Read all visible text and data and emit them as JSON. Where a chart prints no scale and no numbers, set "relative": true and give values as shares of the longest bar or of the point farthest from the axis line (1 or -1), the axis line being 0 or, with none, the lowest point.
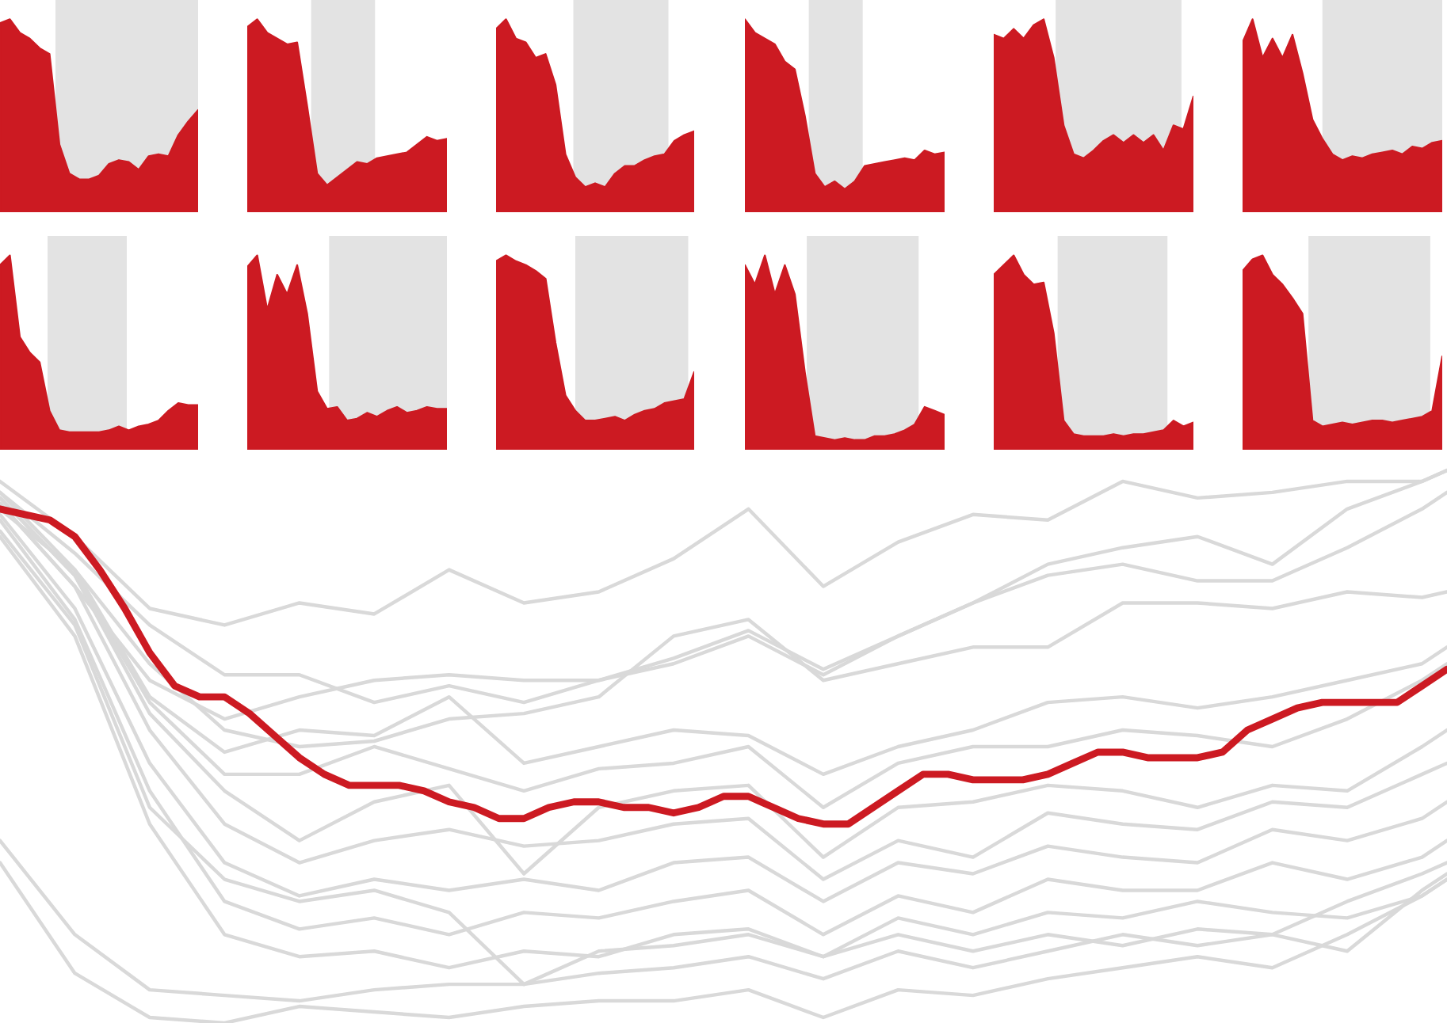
{
  "chart_data": [
    {
      "type": "area",
      "relative": true,
      "categories": [
        null,
        null,
        null,
        null,
        null,
        null,
        null,
        null,
        null,
        null,
        null,
        null,
        null,
        null,
        null,
        null,
        null,
        null,
        null,
        null,
        null
      ],
      "tick_labels": false,
      "series": [
        {
          "color": "#cc1a22",
          "values": [
            0.98,
            1.0,
            0.93,
            0.9,
            0.85,
            0.82,
            0.35,
            0.2,
            0.17,
            0.17,
            0.19,
            0.25,
            0.27,
            0.26,
            0.22,
            0.29,
            0.3,
            0.29,
            0.4,
            0.47,
            0.53
          ]
        }
      ]
    },
    {
      "type": "area",
      "relative": true,
      "categories": [
        null,
        null,
        null,
        null,
        null,
        null,
        null,
        null,
        null,
        null,
        null,
        null,
        null,
        null,
        null,
        null,
        null,
        null,
        null,
        null,
        null
      ],
      "tick_labels": false,
      "series": [
        {
          "color": "#cc1a22",
          "values": [
            0.96,
            1.0,
            0.93,
            0.9,
            0.87,
            0.88,
            0.55,
            0.2,
            0.14,
            0.18,
            0.22,
            0.26,
            0.25,
            0.28,
            0.29,
            0.3,
            0.31,
            0.35,
            0.39,
            0.37,
            0.38
          ]
        }
      ]
    },
    {
      "type": "area",
      "relative": true,
      "categories": [
        null,
        null,
        null,
        null,
        null,
        null,
        null,
        null,
        null,
        null,
        null,
        null,
        null,
        null,
        null,
        null,
        null,
        null,
        null,
        null,
        null
      ],
      "tick_labels": false,
      "series": [
        {
          "color": "#cc1a22",
          "values": [
            0.95,
            1.0,
            0.9,
            0.88,
            0.8,
            0.82,
            0.66,
            0.3,
            0.18,
            0.13,
            0.15,
            0.13,
            0.2,
            0.24,
            0.24,
            0.27,
            0.29,
            0.3,
            0.37,
            0.4,
            0.42
          ]
        }
      ]
    },
    {
      "type": "area",
      "relative": true,
      "categories": [
        null,
        null,
        null,
        null,
        null,
        null,
        null,
        null,
        null,
        null,
        null,
        null,
        null,
        null,
        null,
        null,
        null,
        null,
        null,
        null,
        null
      ],
      "tick_labels": false,
      "series": [
        {
          "color": "#cc1a22",
          "values": [
            1.0,
            0.93,
            0.9,
            0.87,
            0.78,
            0.74,
            0.5,
            0.2,
            0.13,
            0.16,
            0.12,
            0.16,
            0.24,
            0.25,
            0.26,
            0.27,
            0.28,
            0.27,
            0.32,
            0.3,
            0.31
          ]
        }
      ]
    },
    {
      "type": "area",
      "relative": true,
      "categories": [
        null,
        null,
        null,
        null,
        null,
        null,
        null,
        null,
        null,
        null,
        null,
        null,
        null,
        null,
        null,
        null,
        null,
        null,
        null,
        null,
        null
      ],
      "tick_labels": false,
      "series": [
        {
          "color": "#cc1a22",
          "values": [
            0.92,
            0.9,
            0.95,
            0.9,
            0.97,
            1.0,
            0.8,
            0.45,
            0.3,
            0.28,
            0.32,
            0.37,
            0.4,
            0.36,
            0.4,
            0.36,
            0.4,
            0.32,
            0.45,
            0.43,
            0.6
          ]
        }
      ]
    },
    {
      "type": "area",
      "relative": true,
      "categories": [
        null,
        null,
        null,
        null,
        null,
        null,
        null,
        null,
        null,
        null,
        null,
        null,
        null,
        null,
        null,
        null,
        null,
        null,
        null,
        null,
        null
      ],
      "tick_labels": false,
      "series": [
        {
          "color": "#cc1a22",
          "values": [
            0.88,
            1.0,
            0.8,
            0.9,
            0.8,
            0.92,
            0.72,
            0.48,
            0.38,
            0.3,
            0.27,
            0.29,
            0.28,
            0.3,
            0.31,
            0.32,
            0.3,
            0.34,
            0.33,
            0.36,
            0.37
          ]
        }
      ]
    },
    {
      "type": "area",
      "relative": true,
      "categories": [
        null,
        null,
        null,
        null,
        null,
        null,
        null,
        null,
        null,
        null,
        null,
        null,
        null,
        null,
        null,
        null,
        null,
        null,
        null,
        null,
        null
      ],
      "tick_labels": false,
      "series": [
        {
          "color": "#cc1a22",
          "values": [
            0.95,
            1.0,
            0.58,
            0.5,
            0.45,
            0.2,
            0.1,
            0.09,
            0.09,
            0.09,
            0.09,
            0.1,
            0.12,
            0.1,
            0.12,
            0.13,
            0.15,
            0.2,
            0.24,
            0.23,
            0.23
          ]
        }
      ]
    },
    {
      "type": "area",
      "relative": true,
      "categories": [
        null,
        null,
        null,
        null,
        null,
        null,
        null,
        null,
        null,
        null,
        null,
        null,
        null,
        null,
        null,
        null,
        null,
        null,
        null,
        null,
        null
      ],
      "tick_labels": false,
      "series": [
        {
          "color": "#cc1a22",
          "values": [
            0.94,
            1.0,
            0.72,
            0.9,
            0.8,
            0.95,
            0.7,
            0.3,
            0.21,
            0.22,
            0.15,
            0.16,
            0.19,
            0.17,
            0.2,
            0.22,
            0.19,
            0.2,
            0.22,
            0.21,
            0.21
          ]
        }
      ]
    },
    {
      "type": "area",
      "relative": true,
      "categories": [
        null,
        null,
        null,
        null,
        null,
        null,
        null,
        null,
        null,
        null,
        null,
        null,
        null,
        null,
        null,
        null,
        null,
        null,
        null,
        null,
        null
      ],
      "tick_labels": false,
      "series": [
        {
          "color": "#cc1a22",
          "values": [
            0.97,
            1.0,
            0.97,
            0.95,
            0.92,
            0.88,
            0.55,
            0.28,
            0.2,
            0.15,
            0.15,
            0.16,
            0.17,
            0.15,
            0.18,
            0.2,
            0.21,
            0.24,
            0.25,
            0.26,
            0.4
          ]
        }
      ]
    },
    {
      "type": "area",
      "relative": true,
      "categories": [
        null,
        null,
        null,
        null,
        null,
        null,
        null,
        null,
        null,
        null,
        null,
        null,
        null,
        null,
        null,
        null,
        null,
        null,
        null,
        null,
        null
      ],
      "tick_labels": false,
      "series": [
        {
          "color": "#cc1a22",
          "values": [
            0.95,
            0.85,
            1.0,
            0.8,
            0.95,
            0.8,
            0.4,
            0.07,
            0.06,
            0.05,
            0.06,
            0.05,
            0.05,
            0.07,
            0.07,
            0.08,
            0.1,
            0.13,
            0.22,
            0.2,
            0.18
          ]
        }
      ]
    },
    {
      "type": "area",
      "relative": true,
      "categories": [
        null,
        null,
        null,
        null,
        null,
        null,
        null,
        null,
        null,
        null,
        null,
        null,
        null,
        null,
        null,
        null,
        null,
        null,
        null,
        null,
        null
      ],
      "tick_labels": false,
      "series": [
        {
          "color": "#cc1a22",
          "values": [
            0.9,
            0.95,
            1.0,
            0.9,
            0.85,
            0.86,
            0.6,
            0.15,
            0.08,
            0.07,
            0.07,
            0.07,
            0.08,
            0.07,
            0.08,
            0.08,
            0.09,
            0.1,
            0.15,
            0.12,
            0.14
          ]
        }
      ]
    },
    {
      "type": "area",
      "relative": true,
      "categories": [
        null,
        null,
        null,
        null,
        null,
        null,
        null,
        null,
        null,
        null,
        null,
        null,
        null,
        null,
        null,
        null,
        null,
        null,
        null,
        null,
        null
      ],
      "tick_labels": false,
      "series": [
        {
          "color": "#cc1a22",
          "values": [
            0.92,
            0.98,
            1.0,
            0.9,
            0.85,
            0.78,
            0.7,
            0.15,
            0.12,
            0.13,
            0.14,
            0.13,
            0.14,
            0.15,
            0.15,
            0.14,
            0.15,
            0.16,
            0.17,
            0.2,
            0.48
          ]
        }
      ]
    },
    {
      "type": "line",
      "relative": true,
      "categories": [
        null,
        null,
        null,
        null,
        null,
        null,
        null,
        null,
        null,
        null,
        null,
        null,
        null,
        null,
        null,
        null,
        null,
        null,
        null,
        null,
        null,
        null,
        null,
        null,
        null,
        null,
        null,
        null,
        null,
        null,
        null,
        null,
        null,
        null,
        null,
        null,
        null,
        null,
        null,
        null,
        null,
        null,
        null,
        null,
        null,
        null,
        null,
        null,
        null,
        null,
        null,
        null,
        null,
        null,
        null,
        null,
        null,
        null,
        null
      ],
      "tick_labels": false,
      "series": [
        {
          "color": "#d9d9d9",
          "values": [
            0.98,
            null,
            null,
            0.88,
            null,
            null,
            0.75,
            null,
            null,
            0.72,
            null,
            null,
            0.76,
            null,
            null,
            0.74,
            null,
            null,
            0.82,
            null,
            null,
            0.76,
            null,
            null,
            0.78,
            null,
            null,
            0.84,
            null,
            null,
            0.93,
            null,
            null,
            0.79,
            null,
            null,
            0.87,
            null,
            null,
            0.92,
            null,
            null,
            0.91,
            null,
            null,
            0.98,
            null,
            null,
            0.95,
            null,
            null,
            0.96,
            null,
            null,
            0.98,
            null,
            null,
            0.98,
            1.0
          ]
        },
        {
          "color": "#d9d9d9",
          "values": [
            0.96,
            null,
            null,
            0.85,
            null,
            null,
            0.72,
            null,
            null,
            0.63,
            null,
            null,
            0.63,
            null,
            null,
            0.58,
            null,
            null,
            0.61,
            null,
            null,
            0.58,
            null,
            null,
            0.62,
            null,
            null,
            0.65,
            null,
            null,
            0.7,
            null,
            null,
            0.63,
            null,
            null,
            0.7,
            null,
            null,
            0.76,
            null,
            null,
            0.83,
            null,
            null,
            0.86,
            null,
            null,
            0.88,
            null,
            null,
            0.83,
            null,
            null,
            0.93,
            null,
            null,
            0.98,
            1.0
          ]
        },
        {
          "color": "#d9d9d9",
          "values": [
            0.93,
            null,
            null,
            0.82,
            null,
            null,
            0.65,
            null,
            null,
            0.53,
            null,
            null,
            0.5,
            null,
            null,
            0.51,
            null,
            null,
            0.55,
            null,
            null,
            0.56,
            null,
            null,
            0.59,
            null,
            null,
            0.7,
            null,
            null,
            0.73,
            null,
            null,
            0.62,
            null,
            null,
            0.65,
            null,
            null,
            0.68,
            null,
            null,
            0.68,
            null,
            null,
            0.76,
            null,
            null,
            0.76,
            null,
            null,
            0.75,
            null,
            null,
            0.78,
            null,
            null,
            0.77,
            0.78
          ]
        },
        {
          "color": "#d9d9d9",
          "values": [
            0.94,
            null,
            null,
            0.79,
            null,
            null,
            0.62,
            null,
            null,
            0.55,
            null,
            null,
            0.59,
            null,
            null,
            0.62,
            null,
            null,
            0.63,
            null,
            null,
            0.62,
            null,
            null,
            0.62,
            null,
            null,
            0.66,
            null,
            null,
            0.71,
            null,
            null,
            0.64,
            null,
            null,
            0.7,
            null,
            null,
            0.76,
            null,
            null,
            0.81,
            null,
            null,
            0.83,
            null,
            null,
            0.8,
            null,
            null,
            0.8,
            null,
            null,
            0.86,
            null,
            null,
            0.93,
            0.96
          ]
        },
        {
          "color": "#d9d9d9",
          "values": [
            0.29,
            null,
            null,
            0.09,
            null,
            null,
            0.01,
            null,
            null,
            0.0,
            null,
            null,
            0.03,
            null,
            null,
            0.02,
            null,
            null,
            0.01,
            null,
            null,
            0.03,
            null,
            null,
            0.04,
            null,
            null,
            0.04,
            null,
            null,
            0.06,
            null,
            null,
            0.01,
            null,
            null,
            0.06,
            null,
            null,
            0.05,
            null,
            null,
            0.08,
            null,
            null,
            0.1,
            null,
            null,
            0.12,
            null,
            null,
            0.1,
            null,
            null,
            0.16,
            null,
            null,
            0.23,
            0.26
          ]
        },
        {
          "color": "#d9d9d9",
          "values": [
            0.33,
            null,
            null,
            0.16,
            null,
            null,
            0.06,
            null,
            null,
            0.05,
            null,
            null,
            0.04,
            null,
            null,
            0.06,
            null,
            null,
            0.07,
            null,
            null,
            0.07,
            null,
            null,
            0.09,
            null,
            null,
            0.1,
            null,
            null,
            0.12,
            null,
            null,
            0.08,
            null,
            null,
            0.13,
            null,
            null,
            0.1,
            null,
            null,
            0.13,
            null,
            null,
            0.16,
            null,
            null,
            0.14,
            null,
            null,
            0.16,
            null,
            null,
            0.22,
            null,
            null,
            0.27,
            0.29
          ]
        },
        {
          "color": "#d9d9d9",
          "values": [
            0.88,
            null,
            null,
            0.7,
            null,
            null,
            0.36,
            null,
            null,
            0.16,
            null,
            null,
            0.12,
            null,
            null,
            0.13,
            null,
            null,
            0.1,
            null,
            null,
            0.13,
            null,
            null,
            0.12,
            null,
            null,
            0.16,
            null,
            null,
            0.17,
            null,
            null,
            0.12,
            null,
            null,
            0.19,
            null,
            null,
            0.16,
            null,
            null,
            0.2,
            null,
            null,
            0.19,
            null,
            null,
            0.22,
            null,
            null,
            0.2,
            null,
            null,
            0.19,
            null,
            null,
            0.23,
            0.26
          ]
        },
        {
          "color": "#d9d9d9",
          "values": [
            0.91,
            null,
            null,
            0.73,
            null,
            null,
            0.42,
            null,
            null,
            0.22,
            null,
            null,
            0.17,
            null,
            null,
            0.19,
            null,
            null,
            0.16,
            null,
            null,
            0.2,
            null,
            null,
            0.19,
            null,
            null,
            0.22,
            null,
            null,
            0.24,
            null,
            null,
            0.16,
            null,
            null,
            0.23,
            null,
            null,
            0.2,
            null,
            null,
            0.26,
            null,
            null,
            0.24,
            null,
            null,
            0.24,
            null,
            null,
            0.29,
            null,
            null,
            0.26,
            null,
            null,
            0.3,
            0.33
          ]
        },
        {
          "color": "#d9d9d9",
          "values": [
            0.92,
            null,
            null,
            0.75,
            null,
            null,
            0.47,
            null,
            null,
            0.29,
            null,
            null,
            0.23,
            null,
            null,
            0.26,
            null,
            null,
            0.24,
            null,
            null,
            0.26,
            null,
            null,
            0.24,
            null,
            null,
            0.29,
            null,
            null,
            0.3,
            null,
            null,
            0.22,
            null,
            null,
            0.29,
            null,
            null,
            0.27,
            null,
            null,
            0.32,
            null,
            null,
            0.3,
            null,
            null,
            0.29,
            null,
            null,
            0.35,
            null,
            null,
            0.33,
            null,
            null,
            0.37,
            0.4
          ]
        },
        {
          "color": "#d9d9d9",
          "values": [
            0.94,
            null,
            null,
            0.79,
            null,
            null,
            0.53,
            null,
            null,
            0.36,
            null,
            null,
            0.29,
            null,
            null,
            0.33,
            null,
            null,
            0.35,
            null,
            null,
            0.32,
            null,
            null,
            0.33,
            null,
            null,
            0.36,
            null,
            null,
            0.37,
            null,
            null,
            0.26,
            null,
            null,
            0.33,
            null,
            null,
            0.3,
            null,
            null,
            0.38,
            null,
            null,
            0.36,
            null,
            null,
            0.35,
            null,
            null,
            0.4,
            null,
            null,
            0.39,
            null,
            null,
            0.45,
            0.47
          ]
        },
        {
          "color": "#d9d9d9",
          "values": [
            0.95,
            null,
            null,
            0.81,
            null,
            null,
            0.56,
            null,
            null,
            0.42,
            null,
            null,
            0.33,
            null,
            null,
            0.4,
            null,
            null,
            0.43,
            null,
            null,
            0.27,
            null,
            null,
            0.39,
            null,
            null,
            0.42,
            null,
            null,
            0.43,
            null,
            null,
            0.3,
            null,
            null,
            0.39,
            null,
            null,
            0.4,
            null,
            null,
            0.43,
            null,
            null,
            0.42,
            null,
            null,
            0.39,
            null,
            null,
            0.43,
            null,
            null,
            0.42,
            null,
            null,
            0.5,
            0.53
          ]
        },
        {
          "color": "#d9d9d9",
          "values": [
            0.96,
            null,
            null,
            0.82,
            null,
            null,
            0.59,
            null,
            null,
            0.49,
            null,
            null,
            0.53,
            null,
            null,
            0.52,
            null,
            null,
            0.59,
            null,
            null,
            0.47,
            null,
            null,
            0.5,
            null,
            null,
            0.53,
            null,
            null,
            0.52,
            null,
            null,
            0.45,
            null,
            null,
            0.5,
            null,
            null,
            0.53,
            null,
            null,
            0.58,
            null,
            null,
            0.59,
            null,
            null,
            0.57,
            null,
            null,
            0.59,
            null,
            null,
            0.62,
            null,
            null,
            0.65,
            0.68
          ]
        },
        {
          "color": "#d9d9d9",
          "values": [
            0.95,
            null,
            null,
            0.81,
            null,
            null,
            0.58,
            null,
            null,
            0.45,
            null,
            null,
            0.45,
            null,
            null,
            0.5,
            null,
            null,
            0.46,
            null,
            null,
            0.42,
            null,
            null,
            0.46,
            null,
            null,
            0.47,
            null,
            null,
            0.5,
            null,
            null,
            0.39,
            null,
            null,
            0.47,
            null,
            null,
            0.5,
            null,
            null,
            0.5,
            null,
            null,
            0.53,
            null,
            null,
            0.52,
            null,
            null,
            0.5,
            null,
            null,
            0.55,
            null,
            null,
            0.62,
            0.65
          ]
        },
        {
          "color": "#d9d9d9",
          "values": [
            0.89,
            null,
            null,
            0.72,
            null,
            null,
            0.39,
            null,
            null,
            0.26,
            null,
            null,
            0.22,
            null,
            null,
            0.24,
            null,
            null,
            0.2,
            null,
            null,
            0.07,
            null,
            null,
            0.13,
            null,
            null,
            0.14,
            null,
            null,
            0.16,
            null,
            null,
            0.12,
            null,
            null,
            0.16,
            null,
            null,
            0.13,
            null,
            null,
            0.16,
            null,
            null,
            0.14,
            null,
            null,
            0.17,
            null,
            null,
            0.16,
            null,
            null,
            0.13,
            null,
            null,
            0.24,
            0.27
          ]
        },
        {
          "color": "#cc1a22",
          "values": [
            0.93,
            0.92,
            0.91,
            0.88,
            0.82,
            0.75,
            0.67,
            0.61,
            0.59,
            0.59,
            0.56,
            0.52,
            0.48,
            0.45,
            0.43,
            0.43,
            0.43,
            0.42,
            0.4,
            0.39,
            0.37,
            0.37,
            0.39,
            0.4,
            0.4,
            0.39,
            0.39,
            0.38,
            0.39,
            0.41,
            0.41,
            0.39,
            0.37,
            0.36,
            0.36,
            0.39,
            0.42,
            0.45,
            0.45,
            0.44,
            0.44,
            0.44,
            0.45,
            0.47,
            0.49,
            0.49,
            0.48,
            0.48,
            0.48,
            0.49,
            0.53,
            0.55,
            0.57,
            0.58,
            0.58,
            0.58,
            0.58,
            0.61,
            0.64
          ]
        }
      ]
    }
  ]
}
